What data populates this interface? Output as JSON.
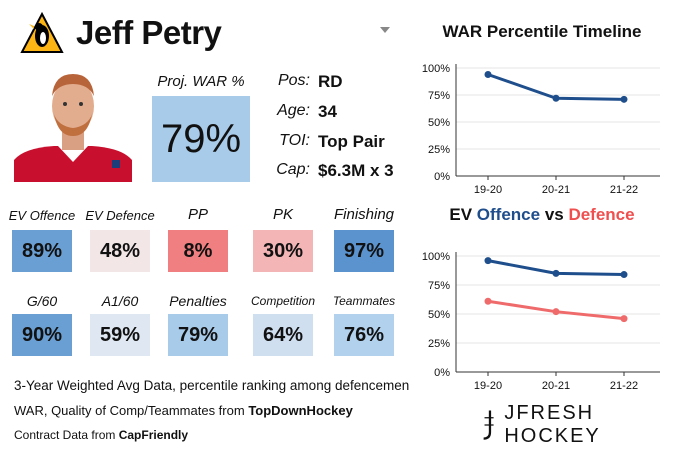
{
  "player": {
    "name": "Jeff Petry",
    "team_logo": "penguins-logo"
  },
  "proj_war": {
    "label": "Proj. WAR %",
    "value": "79%",
    "color": "#a9cbea"
  },
  "info": [
    {
      "label": "Pos:",
      "value": "RD"
    },
    {
      "label": "Age:",
      "value": "34"
    },
    {
      "label": "TOI:",
      "value": "Top Pair"
    },
    {
      "label": "Cap:",
      "value": "$6.3M x 3"
    }
  ],
  "stats": [
    {
      "label": "EV Offence",
      "value": "89%",
      "color": "#6a9fd4"
    },
    {
      "label": "EV Defence",
      "value": "48%",
      "color": "#f3e6e7"
    },
    {
      "label": "PP",
      "value": "8%",
      "color": "#ef7f80"
    },
    {
      "label": "PK",
      "value": "30%",
      "color": "#f4b5b7"
    },
    {
      "label": "Finishing",
      "value": "97%",
      "color": "#5b93cf"
    },
    {
      "label": "G/60",
      "value": "90%",
      "color": "#6a9fd4"
    },
    {
      "label": "A1/60",
      "value": "59%",
      "color": "#dfe7f2"
    },
    {
      "label": "Penalties",
      "value": "79%",
      "color": "#a9cbea"
    },
    {
      "label": "Competition",
      "value": "64%",
      "color": "#d0dff0"
    },
    {
      "label": "Teammates",
      "value": "76%",
      "color": "#b2d1ed"
    }
  ],
  "footer": {
    "line1": "3-Year Weighted Avg Data, percentile ranking among defencemen",
    "line2_prefix": "WAR, Quality of Comp/Teammates from ",
    "line2_source": "TopDownHockey",
    "line3_prefix": "Contract Data from ",
    "line3_source": "CapFriendly"
  },
  "brand": {
    "name": "JFRESH HOCKEY",
    "logo": "jfresh-logo"
  },
  "chart_data": [
    {
      "type": "line",
      "title": "WAR Percentile Timeline",
      "categories": [
        "19-20",
        "20-21",
        "21-22"
      ],
      "series": [
        {
          "values": [
            94,
            72,
            71
          ],
          "color": "#1f4e8c"
        }
      ],
      "ylim": [
        0,
        100
      ],
      "yticks": [
        "0%",
        "25%",
        "50%",
        "75%",
        "100%"
      ],
      "grid": true
    },
    {
      "type": "line",
      "title_parts": [
        "EV ",
        "Offence",
        " vs ",
        "Defence"
      ],
      "categories": [
        "19-20",
        "20-21",
        "21-22"
      ],
      "series": [
        {
          "values": [
            96,
            85,
            84
          ],
          "color": "#1f4e8c"
        },
        {
          "values": [
            61,
            52,
            46
          ],
          "color": "#ef6b6b"
        }
      ],
      "ylim": [
        0,
        100
      ],
      "yticks": [
        "0%",
        "25%",
        "50%",
        "75%",
        "100%"
      ],
      "grid": true
    }
  ]
}
